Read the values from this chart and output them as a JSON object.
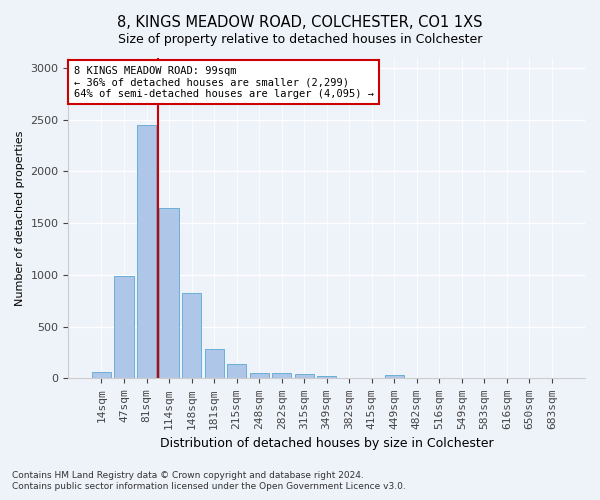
{
  "title": "8, KINGS MEADOW ROAD, COLCHESTER, CO1 1XS",
  "subtitle": "Size of property relative to detached houses in Colchester",
  "xlabel": "Distribution of detached houses by size in Colchester",
  "ylabel": "Number of detached properties",
  "bar_color": "#aec6e8",
  "bar_edge_color": "#6aaed6",
  "background_color": "#eef2f9",
  "grid_color": "#ffffff",
  "categories": [
    "14sqm",
    "47sqm",
    "81sqm",
    "114sqm",
    "148sqm",
    "181sqm",
    "215sqm",
    "248sqm",
    "282sqm",
    "315sqm",
    "349sqm",
    "382sqm",
    "415sqm",
    "449sqm",
    "482sqm",
    "516sqm",
    "549sqm",
    "583sqm",
    "616sqm",
    "650sqm",
    "683sqm"
  ],
  "values": [
    65,
    990,
    2450,
    1650,
    830,
    285,
    140,
    55,
    55,
    40,
    20,
    0,
    0,
    35,
    0,
    0,
    0,
    0,
    0,
    0,
    0
  ],
  "annotation_text": "8 KINGS MEADOW ROAD: 99sqm\n← 36% of detached houses are smaller (2,299)\n64% of semi-detached houses are larger (4,095) →",
  "annotation_box_color": "#ffffff",
  "annotation_box_edge_color": "#cc0000",
  "vline_color": "#cc0000",
  "ylim": [
    0,
    3100
  ],
  "yticks": [
    0,
    500,
    1000,
    1500,
    2000,
    2500,
    3000
  ],
  "vline_x_index": 2.5,
  "footnote1": "Contains HM Land Registry data © Crown copyright and database right 2024.",
  "footnote2": "Contains public sector information licensed under the Open Government Licence v3.0."
}
